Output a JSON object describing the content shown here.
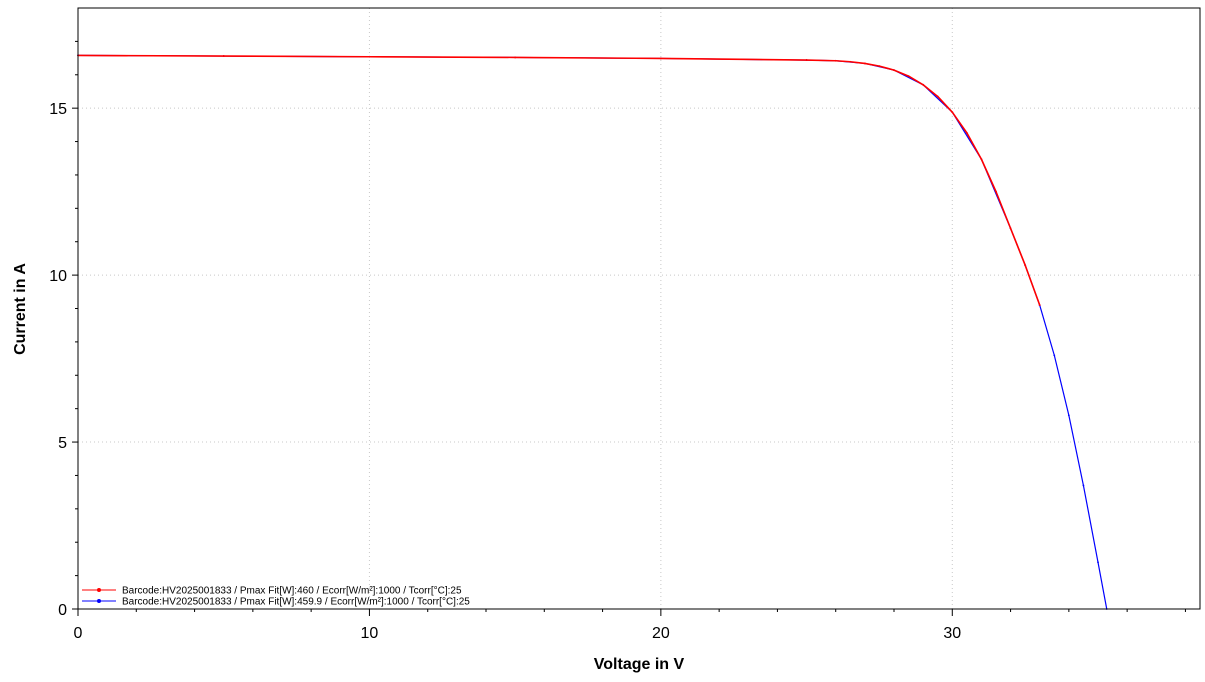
{
  "chart_data": {
    "type": "line",
    "title": "",
    "xlabel": "Voltage in V",
    "ylabel": "Current in A",
    "xlim": [
      0,
      38.5
    ],
    "ylim": [
      0,
      18
    ],
    "xticks": [
      0,
      10,
      20,
      30
    ],
    "yticks": [
      0,
      5,
      10,
      15
    ],
    "grid": true,
    "legend_placement": "bottom-left",
    "series": [
      {
        "name": "Barcode:HV2025001833 / Pmax Fit[W]:460 / Ecorr[W/m²]:1000 / Tcorr[°C]:25",
        "color": "#ff0000",
        "x": [
          0,
          5,
          10,
          15,
          20,
          25,
          26,
          26.5,
          27,
          27.5,
          28,
          28.5,
          29,
          29.5,
          30,
          30.5,
          31,
          31.5,
          32,
          32.5,
          33
        ],
        "y": [
          16.58,
          16.56,
          16.54,
          16.52,
          16.49,
          16.44,
          16.42,
          16.39,
          16.34,
          16.26,
          16.14,
          15.96,
          15.7,
          15.35,
          14.88,
          14.26,
          13.47,
          12.5,
          11.4,
          10.3,
          9.1
        ]
      },
      {
        "name": "Barcode:HV2025001833 / Pmax Fit[W]:459.9 / Ecorr[W/m²]:1000 / Tcorr[°C]:25",
        "color": "#0000ff",
        "x": [
          0,
          5,
          10,
          15,
          20,
          25,
          26,
          27,
          28,
          29,
          30,
          31,
          32,
          32.5,
          33,
          33.5,
          34,
          34.5,
          35,
          35.3
        ],
        "y": [
          16.58,
          16.56,
          16.54,
          16.52,
          16.49,
          16.44,
          16.42,
          16.34,
          16.14,
          15.7,
          14.88,
          13.47,
          11.4,
          10.3,
          9.1,
          7.6,
          5.8,
          3.7,
          1.4,
          0.0
        ]
      }
    ]
  }
}
